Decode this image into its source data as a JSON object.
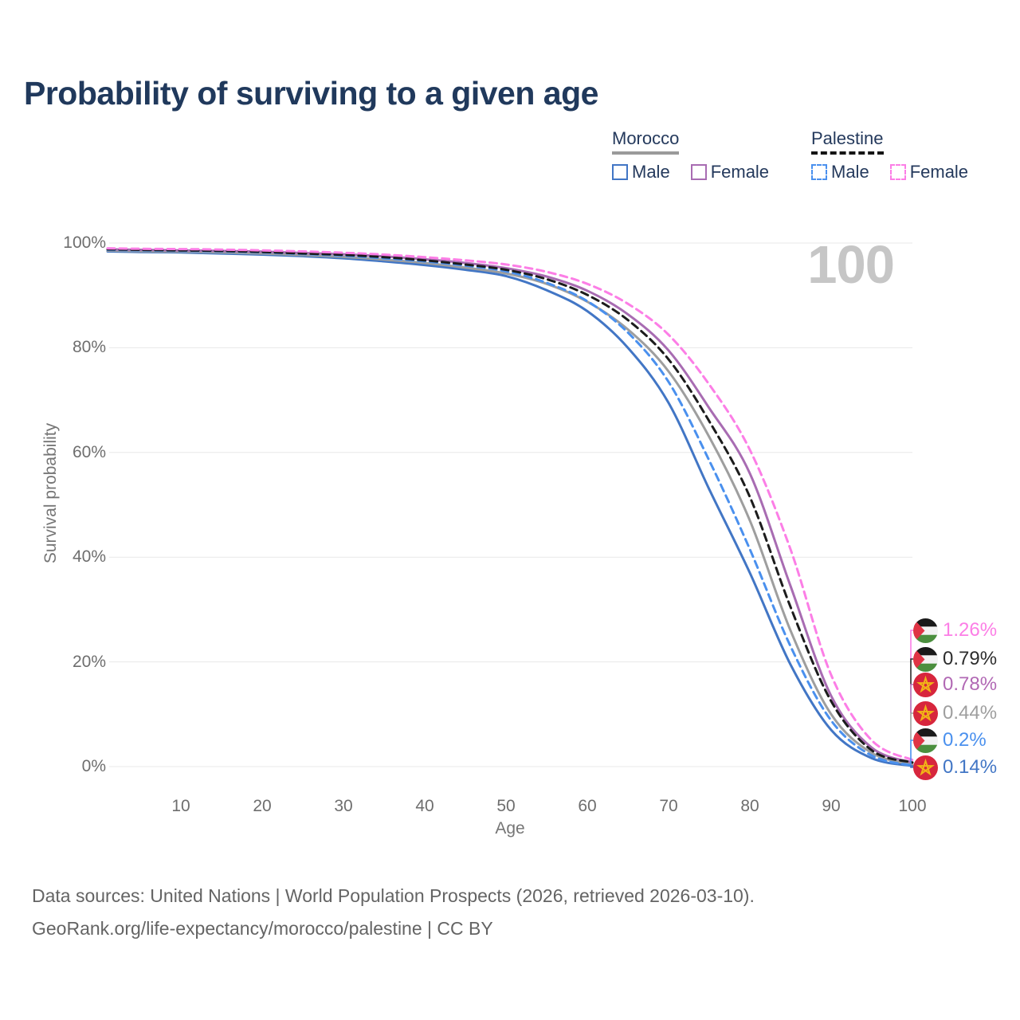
{
  "title": "Probability of surviving to a given age",
  "watermark": "100",
  "legend": {
    "groups": [
      {
        "label": "Morocco",
        "line_style": "solid",
        "underline_color": "#9a9a9a",
        "items": [
          {
            "label": "Male",
            "color": "#4276c5"
          },
          {
            "label": "Female",
            "color": "#a86cb2"
          }
        ]
      },
      {
        "label": "Palestine",
        "line_style": "dashed",
        "underline_color": "#141414",
        "items": [
          {
            "label": "Male",
            "color": "#4a90ee"
          },
          {
            "label": "Female",
            "color": "#fc7ee6"
          }
        ]
      }
    ]
  },
  "axes": {
    "x_label": "Age",
    "y_label": "Survival probability",
    "x_ticks": [
      10,
      20,
      30,
      40,
      50,
      60,
      70,
      80,
      90,
      100
    ],
    "y_ticks": [
      "0%",
      "20%",
      "40%",
      "60%",
      "80%",
      "100%"
    ]
  },
  "chart_data": {
    "type": "line",
    "title": "Probability of surviving to a given age",
    "xlabel": "Age",
    "ylabel": "Survival probability",
    "xlim": [
      1,
      100
    ],
    "ylim": [
      0,
      100
    ],
    "grid": "horizontal-only",
    "legend_position": "top-right",
    "x": [
      1,
      5,
      10,
      15,
      20,
      25,
      30,
      35,
      40,
      45,
      50,
      55,
      60,
      65,
      70,
      75,
      80,
      85,
      90,
      95,
      100
    ],
    "series": [
      {
        "name": "Morocco Male",
        "country": "Morocco",
        "sex": "Male",
        "color": "#4276c5",
        "dash": false,
        "values": [
          98.4,
          98.3,
          98.2,
          98.0,
          97.8,
          97.5,
          97.1,
          96.5,
          95.8,
          94.9,
          93.7,
          91.0,
          87.0,
          80.0,
          69.5,
          53.0,
          37.0,
          19.5,
          7.0,
          1.6,
          0.14
        ]
      },
      {
        "name": "Palestine Male",
        "country": "Palestine",
        "sex": "Male",
        "color": "#4a90ee",
        "dash": true,
        "values": [
          98.7,
          98.6,
          98.5,
          98.4,
          98.2,
          97.9,
          97.6,
          97.1,
          96.5,
          95.7,
          94.6,
          92.4,
          88.9,
          82.9,
          73.5,
          58.5,
          41.5,
          23.0,
          8.8,
          2.1,
          0.2
        ]
      },
      {
        "name": "Morocco",
        "country": "Morocco",
        "sex": "Both",
        "color": "#9e9e9e",
        "dash": false,
        "values": [
          98.55,
          98.45,
          98.35,
          98.2,
          98.0,
          97.7,
          97.35,
          96.85,
          96.2,
          95.3,
          94.2,
          92.2,
          88.8,
          83.5,
          75.5,
          63.0,
          47.0,
          26.0,
          10.0,
          2.6,
          0.44
        ]
      },
      {
        "name": "Palestine",
        "country": "Palestine",
        "sex": "Both",
        "color": "#1c1c1c",
        "dash": true,
        "values": [
          98.8,
          98.7,
          98.6,
          98.5,
          98.3,
          98.0,
          97.75,
          97.3,
          96.7,
          95.9,
          94.9,
          93.1,
          90.1,
          85.3,
          77.8,
          66.0,
          51.5,
          30.5,
          12.5,
          3.1,
          0.79
        ]
      },
      {
        "name": "Morocco Female",
        "country": "Morocco",
        "sex": "Female",
        "color": "#a86cb2",
        "dash": false,
        "values": [
          98.8,
          98.7,
          98.6,
          98.5,
          98.35,
          98.1,
          97.85,
          97.45,
          96.9,
          96.2,
          95.2,
          93.6,
          90.9,
          86.4,
          79.5,
          68.5,
          56.0,
          34.5,
          13.5,
          3.6,
          0.78
        ]
      },
      {
        "name": "Palestine Female",
        "country": "Palestine",
        "sex": "Female",
        "color": "#fc7ee6",
        "dash": true,
        "values": [
          99.0,
          98.9,
          98.85,
          98.75,
          98.6,
          98.4,
          98.15,
          97.8,
          97.3,
          96.7,
          95.9,
          94.5,
          92.2,
          88.4,
          82.5,
          73.0,
          60.5,
          41.5,
          17.5,
          5.0,
          1.26
        ]
      }
    ],
    "end_labels": [
      {
        "flag": "palestine",
        "series": "Palestine Female",
        "value_text": "1.26%",
        "end_value": 1.26,
        "color": "#fc7ee6"
      },
      {
        "flag": "palestine",
        "series": "Palestine",
        "value_text": "0.79%",
        "end_value": 0.79,
        "color": "#2d2d2d"
      },
      {
        "flag": "morocco",
        "series": "Morocco Female",
        "value_text": "0.78%",
        "end_value": 0.78,
        "color": "#b168b4"
      },
      {
        "flag": "morocco",
        "series": "Morocco",
        "value_text": "0.44%",
        "end_value": 0.44,
        "color": "#9e9e9e"
      },
      {
        "flag": "palestine",
        "series": "Palestine Male",
        "value_text": "0.2%",
        "end_value": 0.2,
        "color": "#4a90ee"
      },
      {
        "flag": "morocco",
        "series": "Morocco Male",
        "value_text": "0.14%",
        "end_value": 0.14,
        "color": "#4276c5"
      }
    ]
  },
  "footer": {
    "line1": "Data sources: United Nations | World Population Prospects (2026, retrieved 2026-03-10).",
    "line2": "GeoRank.org/life-expectancy/morocco/palestine | CC BY"
  }
}
